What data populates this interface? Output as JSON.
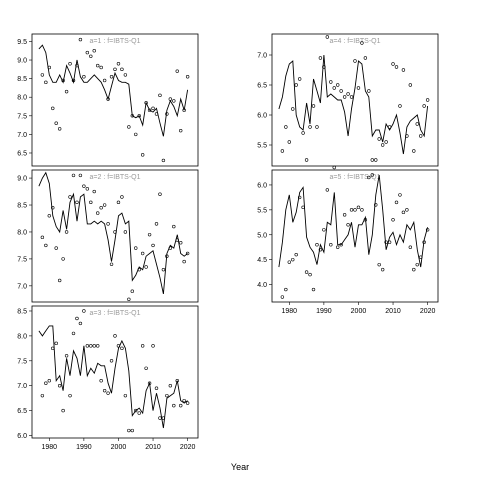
{
  "chart_data": {
    "type": "line",
    "xlabel": "Year",
    "ylabel": "",
    "grid": false,
    "panels": [
      {
        "label": "a=1 : f=IBTS-Q1",
        "xlim": [
          1975,
          2023
        ],
        "ylim": [
          6.15,
          9.7
        ],
        "xticks": [],
        "yticks": [
          "6.5",
          "7.0",
          "7.5",
          "8.0",
          "8.5",
          "9.0",
          "9.5"
        ],
        "line": {
          "x": [
            1977,
            1978,
            1979,
            1980,
            1981,
            1982,
            1983,
            1984,
            1985,
            1986,
            1987,
            1988,
            1989,
            1990,
            1991,
            1992,
            1993,
            1994,
            1995,
            1996,
            1997,
            1998,
            1999,
            2000,
            2001,
            2002,
            2003,
            2004,
            2005,
            2006,
            2007,
            2008,
            2009,
            2010,
            2011,
            2012,
            2013,
            2014,
            2015,
            2016,
            2017,
            2018,
            2019,
            2020
          ],
          "y": [
            9.3,
            9.4,
            9.2,
            8.6,
            8.4,
            8.4,
            8.6,
            8.4,
            8.85,
            8.65,
            8.4,
            9.0,
            8.55,
            8.4,
            8.4,
            8.5,
            8.6,
            8.5,
            8.4,
            8.2,
            7.95,
            8.3,
            8.65,
            8.45,
            8.4,
            8.4,
            8.35,
            7.5,
            7.45,
            7.5,
            7.25,
            7.85,
            7.65,
            7.6,
            7.7,
            7.3,
            6.95,
            7.65,
            7.9,
            7.75,
            7.5,
            7.95,
            7.65,
            8.2
          ]
        },
        "points": {
          "x": [
            1978,
            1979,
            1980,
            1981,
            1982,
            1983,
            1984,
            1985,
            1986,
            1987,
            1988,
            1989,
            1990,
            1991,
            1992,
            1993,
            1994,
            1995,
            1996,
            1997,
            1998,
            1999,
            2000,
            2001,
            2002,
            2003,
            2004,
            2005,
            2006,
            2007,
            2008,
            2009,
            2010,
            2011,
            2012,
            2013,
            2014,
            2015,
            2016,
            2017,
            2018,
            2019,
            2020
          ],
          "y": [
            8.6,
            8.4,
            8.8,
            7.7,
            7.3,
            7.15,
            8.45,
            8.15,
            8.9,
            8.45,
            8.85,
            9.55,
            8.55,
            9.2,
            9.1,
            9.25,
            8.85,
            8.8,
            8.45,
            7.95,
            8.55,
            8.75,
            8.9,
            8.75,
            8.6,
            7.2,
            7.5,
            7.0,
            7.5,
            6.45,
            7.85,
            7.65,
            7.7,
            7.55,
            8.05,
            6.3,
            7.55,
            7.95,
            7.9,
            8.7,
            7.1,
            7.65,
            8.55
          ]
        }
      },
      {
        "label": "a=2 : f=IBTS-Q1",
        "xlim": [
          1975,
          2023
        ],
        "ylim": [
          6.7,
          9.15
        ],
        "xticks": [],
        "yticks": [
          "7.0",
          "7.5",
          "8.0",
          "8.5",
          "9.0"
        ],
        "line": {
          "x": [
            1977,
            1978,
            1979,
            1980,
            1981,
            1982,
            1983,
            1984,
            1985,
            1986,
            1987,
            1988,
            1989,
            1990,
            1991,
            1992,
            1993,
            1994,
            1995,
            1996,
            1997,
            1998,
            1999,
            2000,
            2001,
            2002,
            2003,
            2004,
            2005,
            2006,
            2007,
            2008,
            2009,
            2010,
            2011,
            2012,
            2013,
            2014,
            2015,
            2016,
            2017,
            2018,
            2019,
            2020
          ],
          "y": [
            8.85,
            9.0,
            9.1,
            8.9,
            8.3,
            8.1,
            8.0,
            8.4,
            8.05,
            8.55,
            8.7,
            8.2,
            8.65,
            8.7,
            8.15,
            8.15,
            8.2,
            8.15,
            8.2,
            8.15,
            7.85,
            7.45,
            7.85,
            8.3,
            8.35,
            8.15,
            8.2,
            7.1,
            7.2,
            7.35,
            7.3,
            7.55,
            7.6,
            7.65,
            7.4,
            7.15,
            6.85,
            7.6,
            7.75,
            7.7,
            7.95,
            7.6,
            7.55,
            7.6
          ]
        },
        "points": {
          "x": [
            1978,
            1979,
            1980,
            1981,
            1982,
            1983,
            1984,
            1985,
            1986,
            1987,
            1988,
            1989,
            1990,
            1991,
            1992,
            1993,
            1994,
            1995,
            1996,
            1997,
            1998,
            1999,
            2000,
            2001,
            2002,
            2003,
            2004,
            2005,
            2006,
            2007,
            2008,
            2009,
            2010,
            2011,
            2012,
            2013,
            2014,
            2015,
            2016,
            2017,
            2018,
            2019,
            2020
          ],
          "y": [
            7.9,
            7.75,
            8.3,
            8.45,
            7.7,
            7.1,
            7.5,
            8.0,
            8.65,
            9.05,
            8.55,
            9.05,
            8.85,
            8.8,
            8.55,
            8.75,
            8.35,
            8.45,
            8.5,
            8.15,
            7.4,
            8.0,
            8.55,
            8.65,
            8.0,
            6.75,
            6.9,
            7.7,
            7.3,
            7.6,
            7.35,
            7.95,
            7.75,
            8.15,
            8.7,
            7.3,
            7.55,
            7.7,
            8.1,
            7.85,
            7.8,
            7.45,
            7.6
          ]
        }
      },
      {
        "label": "a=3 : f=IBTS-Q1",
        "xlim": [
          1975,
          2023
        ],
        "ylim": [
          5.95,
          8.6
        ],
        "xticks": [
          "1980",
          "1990",
          "2000",
          "2010",
          "2020"
        ],
        "yticks": [
          "6.0",
          "6.5",
          "7.0",
          "7.5",
          "8.0",
          "8.5"
        ],
        "line": {
          "x": [
            1977,
            1978,
            1979,
            1980,
            1981,
            1982,
            1983,
            1984,
            1985,
            1986,
            1987,
            1988,
            1989,
            1990,
            1991,
            1992,
            1993,
            1994,
            1995,
            1996,
            1997,
            1998,
            1999,
            2000,
            2001,
            2002,
            2003,
            2004,
            2005,
            2006,
            2007,
            2008,
            2009,
            2010,
            2011,
            2012,
            2013,
            2014,
            2015,
            2016,
            2017,
            2018,
            2019,
            2020
          ],
          "y": [
            8.1,
            8.0,
            8.1,
            8.2,
            8.2,
            7.1,
            7.2,
            6.9,
            7.55,
            7.2,
            7.7,
            7.55,
            7.2,
            7.8,
            7.2,
            7.35,
            7.25,
            7.45,
            7.4,
            7.4,
            7.05,
            6.85,
            7.35,
            7.75,
            7.9,
            7.75,
            7.3,
            6.4,
            6.5,
            6.55,
            6.45,
            6.9,
            7.05,
            6.5,
            6.85,
            6.55,
            6.15,
            6.75,
            6.8,
            6.85,
            7.1,
            6.7,
            6.65,
            6.7
          ]
        },
        "points": {
          "x": [
            1978,
            1979,
            1980,
            1981,
            1982,
            1983,
            1984,
            1985,
            1986,
            1987,
            1988,
            1989,
            1990,
            1991,
            1992,
            1993,
            1994,
            1995,
            1996,
            1997,
            1998,
            1999,
            2000,
            2001,
            2002,
            2003,
            2004,
            2005,
            2006,
            2007,
            2008,
            2009,
            2010,
            2011,
            2012,
            2013,
            2014,
            2015,
            2016,
            2017,
            2018,
            2019,
            2020
          ],
          "y": [
            6.8,
            7.05,
            7.1,
            7.75,
            7.85,
            7.0,
            6.5,
            7.6,
            6.8,
            8.05,
            8.35,
            8.25,
            8.5,
            7.8,
            7.8,
            7.8,
            7.8,
            7.1,
            6.9,
            6.85,
            7.5,
            8.0,
            7.8,
            7.75,
            6.8,
            6.1,
            6.1,
            6.5,
            6.45,
            7.8,
            7.35,
            7.05,
            7.8,
            6.95,
            6.35,
            6.35,
            6.8,
            7.0,
            6.6,
            7.1,
            6.6,
            6.7,
            6.65
          ]
        }
      },
      {
        "label": "a=4 : f=IBTS-Q1",
        "xlim": [
          1975,
          2023
        ],
        "ylim": [
          5.15,
          7.35
        ],
        "xticks": [],
        "yticks": [
          "5.5",
          "6.0",
          "6.5",
          "7.0"
        ],
        "line": {
          "x": [
            1977,
            1978,
            1979,
            1980,
            1981,
            1982,
            1983,
            1984,
            1985,
            1986,
            1987,
            1988,
            1989,
            1990,
            1991,
            1992,
            1993,
            1994,
            1995,
            1996,
            1997,
            1998,
            1999,
            2000,
            2001,
            2002,
            2003,
            2004,
            2005,
            2006,
            2007,
            2008,
            2009,
            2010,
            2011,
            2012,
            2013,
            2014,
            2015,
            2016,
            2017,
            2018,
            2019,
            2020
          ],
          "y": [
            6.1,
            6.3,
            6.65,
            6.85,
            6.9,
            6.0,
            5.8,
            5.75,
            6.2,
            5.85,
            6.6,
            6.4,
            6.2,
            7.0,
            6.3,
            6.35,
            6.3,
            6.25,
            6.25,
            6.05,
            5.65,
            6.1,
            6.45,
            6.9,
            6.85,
            6.4,
            6.3,
            5.65,
            5.75,
            5.75,
            5.55,
            5.85,
            5.75,
            5.85,
            6.0,
            5.7,
            5.35,
            5.8,
            5.9,
            5.95,
            6.0,
            5.75,
            5.65,
            6.15
          ]
        },
        "points": {
          "x": [
            1978,
            1979,
            1980,
            1981,
            1982,
            1983,
            1984,
            1985,
            1986,
            1987,
            1988,
            1989,
            1990,
            1991,
            1992,
            1993,
            1994,
            1995,
            1996,
            1997,
            1998,
            1999,
            2000,
            2001,
            2002,
            2003,
            2004,
            2005,
            2006,
            2007,
            2008,
            2009,
            2010,
            2011,
            2012,
            2013,
            2014,
            2015,
            2016,
            2017,
            2018,
            2019,
            2020
          ],
          "y": [
            5.4,
            5.8,
            5.55,
            6.1,
            6.5,
            6.6,
            5.7,
            5.25,
            5.8,
            6.15,
            5.8,
            6.95,
            6.8,
            7.3,
            6.55,
            6.45,
            6.5,
            6.4,
            6.3,
            6.35,
            6.3,
            6.9,
            6.45,
            7.2,
            6.95,
            6.4,
            5.25,
            5.25,
            5.6,
            5.5,
            5.55,
            5.8,
            6.85,
            6.8,
            6.15,
            6.75,
            5.65,
            6.5,
            5.4,
            5.85,
            5.65,
            6.15,
            6.25
          ]
        }
      },
      {
        "label": "a=5 : f=IBTS-Q1",
        "xlim": [
          1975,
          2023
        ],
        "ylim": [
          3.65,
          6.3
        ],
        "xticks": [
          "1980",
          "1990",
          "2000",
          "2010",
          "2020"
        ],
        "yticks": [
          "4.0",
          "4.5",
          "5.0",
          "5.5",
          "6.0"
        ],
        "line": {
          "x": [
            1977,
            1978,
            1979,
            1980,
            1981,
            1982,
            1983,
            1984,
            1985,
            1986,
            1987,
            1988,
            1989,
            1990,
            1991,
            1992,
            1993,
            1994,
            1995,
            1996,
            1997,
            1998,
            1999,
            2000,
            2001,
            2002,
            2003,
            2004,
            2005,
            2006,
            2007,
            2008,
            2009,
            2010,
            2011,
            2012,
            2013,
            2014,
            2015,
            2016,
            2017,
            2018,
            2019,
            2020
          ],
          "y": [
            4.35,
            4.85,
            5.5,
            5.8,
            5.25,
            5.45,
            5.85,
            5.95,
            4.95,
            4.75,
            4.65,
            4.4,
            4.8,
            4.65,
            5.25,
            5.2,
            5.85,
            4.8,
            4.8,
            4.9,
            5.0,
            5.25,
            4.75,
            5.2,
            5.2,
            5.35,
            4.6,
            5.0,
            5.8,
            6.2,
            5.5,
            4.7,
            4.95,
            5.05,
            4.8,
            5.0,
            4.85,
            5.2,
            5.1,
            5.25,
            4.7,
            4.35,
            4.9,
            5.15
          ]
        },
        "points": {
          "x": [
            1978,
            1979,
            1980,
            1981,
            1982,
            1983,
            1984,
            1985,
            1986,
            1987,
            1988,
            1989,
            1990,
            1991,
            1992,
            1993,
            1994,
            1995,
            1996,
            1997,
            1998,
            1999,
            2000,
            2001,
            2002,
            2003,
            2004,
            2005,
            2006,
            2007,
            2008,
            2009,
            2010,
            2011,
            2012,
            2013,
            2014,
            2015,
            2016,
            2017,
            2018,
            2019,
            2020
          ],
          "y": [
            3.75,
            3.9,
            4.45,
            4.5,
            4.6,
            5.75,
            5.55,
            4.25,
            4.2,
            3.9,
            4.8,
            4.7,
            5.1,
            5.9,
            4.8,
            6.35,
            4.75,
            4.8,
            5.4,
            5.2,
            5.5,
            5.5,
            5.55,
            5.5,
            5.3,
            6.15,
            6.2,
            5.6,
            4.4,
            4.3,
            4.85,
            4.85,
            5.3,
            5.65,
            5.8,
            5.45,
            5.5,
            4.75,
            4.3,
            4.4,
            4.55,
            4.85,
            5.1
          ]
        }
      }
    ]
  }
}
